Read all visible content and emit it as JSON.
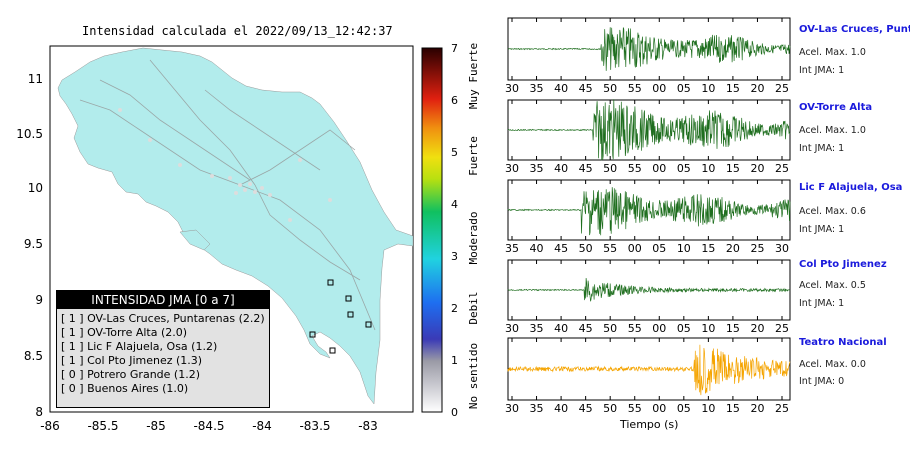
{
  "map": {
    "title": "Intensidad calculada el 2022/09/13_12:42:37",
    "y_ticks": [
      "11",
      "10.5",
      "10",
      "9.5",
      "9",
      "8.5",
      "8"
    ],
    "x_ticks": [
      "-86",
      "-85.5",
      "-85",
      "-84.5",
      "-84",
      "-83.5",
      "-83"
    ],
    "land_color": "#b2ecec",
    "ocean_color": "#ffffff"
  },
  "legend": {
    "title": "INTENSIDAD JMA [0 a 7]",
    "items": [
      {
        "text": "[ 1 ]  OV-Las Cruces, Puntarenas (2.2)"
      },
      {
        "text": "[ 1 ]  OV-Torre Alta (2.0)"
      },
      {
        "text": "[ 1 ]  Lic F Alajuela, Osa (1.2)"
      },
      {
        "text": "[ 1 ]  Col Pto Jimenez (1.3)"
      },
      {
        "text": "[ 0 ]  Potrero Grande (1.2)"
      },
      {
        "text": "[ 0 ]  Buenos Aires (1.0)"
      }
    ]
  },
  "colorbar": {
    "ticks": [
      "7",
      "6",
      "5",
      "4",
      "3",
      "2",
      "1",
      "0"
    ],
    "labels": [
      "Muy Fuerte",
      "Fuerte",
      "Moderado",
      "Debil",
      "No sentido"
    ]
  },
  "waveforms": [
    {
      "name": "OV-Las Cruces, Puntar",
      "acel": "Acel. Max. 1.0",
      "int": "Int JMA: 1",
      "ticks": [
        "30",
        "35",
        "40",
        "45",
        "50",
        "55",
        "00",
        "05",
        "10",
        "15",
        "20",
        "25"
      ],
      "color": "#1e6e1e",
      "onset": 0.33,
      "amp": 0.6
    },
    {
      "name": "OV-Torre Alta",
      "acel": "Acel. Max. 1.0",
      "int": "Int JMA: 1",
      "ticks": [
        "30",
        "35",
        "40",
        "45",
        "50",
        "55",
        "00",
        "05",
        "10",
        "15",
        "20",
        "25"
      ],
      "color": "#1e6e1e",
      "onset": 0.3,
      "amp": 0.85
    },
    {
      "name": "Lic F Alajuela, Osa",
      "acel": "Acel. Max. 0.6",
      "int": "Int JMA: 1",
      "ticks": [
        "35",
        "40",
        "45",
        "50",
        "55",
        "00",
        "05",
        "10",
        "15",
        "20",
        "25",
        "30"
      ],
      "color": "#1e6e1e",
      "onset": 0.26,
      "amp": 0.7
    },
    {
      "name": "Col Pto Jimenez",
      "acel": "Acel. Max. 0.5",
      "int": "Int JMA: 1",
      "ticks": [
        "30",
        "35",
        "40",
        "45",
        "50",
        "55",
        "00",
        "05",
        "10",
        "15",
        "20",
        "25"
      ],
      "color": "#1e6e1e",
      "onset": 0.27,
      "amp": 0.35
    },
    {
      "name": "Teatro Nacional",
      "acel": "Acel. Max. 0.0",
      "int": "Int JMA: 0",
      "ticks": [
        "30",
        "35",
        "40",
        "45",
        "50",
        "55",
        "00",
        "05",
        "10",
        "15",
        "20",
        "25"
      ],
      "color": "#f5a400",
      "onset": 0.66,
      "amp": 0.9
    }
  ],
  "xaxis_label": "Tiempo (s)"
}
